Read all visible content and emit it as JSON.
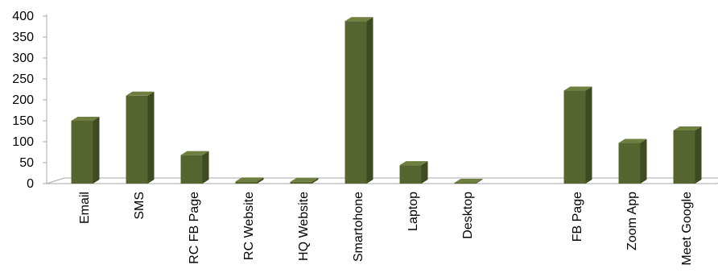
{
  "chart_data": {
    "type": "bar",
    "title": "",
    "xlabel": "",
    "ylabel": "",
    "ylim": [
      0,
      400
    ],
    "yticks": [
      0,
      50,
      100,
      150,
      200,
      250,
      300,
      350,
      400
    ],
    "ytick_labels": [
      "0",
      "50",
      "100",
      "150",
      "200",
      "250",
      "300",
      "350",
      "400"
    ],
    "grid": false,
    "legend": "none",
    "style": "3d-columns",
    "bar_color": "#56652f",
    "categories": [
      "Email",
      "SMS",
      "RC FB Page",
      "RC Website",
      "HQ Website",
      "Smartohone",
      "Laptop",
      "Desktop",
      "",
      "FB Page",
      "Zoom App",
      "Meet Google"
    ],
    "category_labels_visible": [
      "Email",
      "SMS",
      "RC FB Page",
      "RC Website",
      "HQ Website",
      "Smartohone",
      "Laptop",
      "Desktop",
      "",
      "FB Page",
      "Zoom App",
      "Meet Google"
    ],
    "values": [
      150,
      210,
      68,
      5,
      4,
      388,
      44,
      2,
      0,
      222,
      97,
      127
    ]
  }
}
